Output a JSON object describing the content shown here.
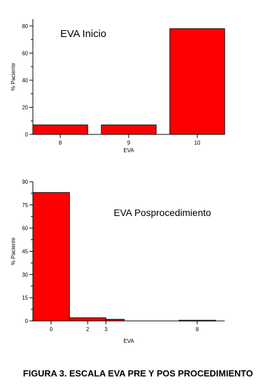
{
  "figure": {
    "caption": "FIGURA 3. ESCALA EVA PRE Y POS PROCEDIMIENTO"
  },
  "colors": {
    "bar_fill": "#ff0000",
    "bar_stroke": "#000000",
    "axis": "#000000"
  },
  "chart_data": [
    {
      "type": "bar",
      "title": "EVA Inicio",
      "xlabel": "EVA",
      "ylabel": "% Paciente",
      "ylim": [
        0,
        85
      ],
      "yticks": [
        0,
        20,
        40,
        60,
        80
      ],
      "ytick_labels": [
        "0",
        "20",
        "40",
        "60",
        "80"
      ],
      "xlim": [
        7.6,
        10.4
      ],
      "xticks": [
        8,
        9,
        10
      ],
      "xtick_labels": [
        "8",
        "9",
        "10"
      ],
      "bars": [
        {
          "x0": 7.6,
          "x1": 8.4,
          "value": 7
        },
        {
          "x0": 8.6,
          "x1": 9.4,
          "value": 7
        },
        {
          "x0": 9.6,
          "x1": 10.4,
          "value": 78
        }
      ],
      "grid": false
    },
    {
      "type": "bar",
      "title": "EVA Posprocedimiento",
      "xlabel": "EVA",
      "ylabel": "% Paciente",
      "ylim": [
        0,
        90
      ],
      "yticks": [
        0,
        15,
        30,
        45,
        60,
        75,
        90
      ],
      "ytick_labels": [
        "0",
        "15",
        "30",
        "45",
        "60",
        "75",
        "90"
      ],
      "xlim": [
        -1,
        9.5
      ],
      "xticks": [
        0,
        2,
        3,
        8
      ],
      "xtick_labels": [
        "0",
        "2",
        "3",
        "8"
      ],
      "bars": [
        {
          "x0": -1,
          "x1": 1,
          "value": 83
        },
        {
          "x0": 1,
          "x1": 3,
          "value": 2
        },
        {
          "x0": 3,
          "x1": 4,
          "value": 1
        },
        {
          "x0": 7,
          "x1": 9,
          "value": 0.4
        }
      ],
      "grid": false
    }
  ]
}
